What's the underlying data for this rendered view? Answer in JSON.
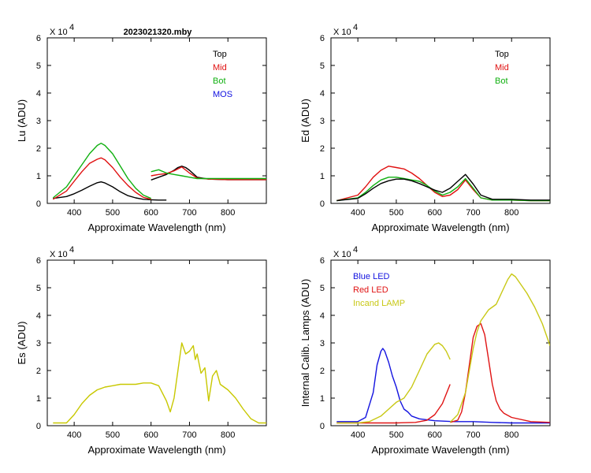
{
  "title": "2023021320.mby",
  "colors": {
    "top": "#000000",
    "mid": "#e01010",
    "bot": "#10b010",
    "mos": "#1010e0",
    "es": "#c8c800",
    "blue_led": "#1414e0",
    "red_led": "#e01414",
    "incand": "#c8c814"
  },
  "chart_data": [
    {
      "id": "lu",
      "type": "line",
      "title": "2023021320.mby",
      "xlabel": "Approximate Wavelength (nm)",
      "ylabel": "Lu (ADU)",
      "multiplier": "X 10",
      "multiplier_exp": "4",
      "xlim": [
        330,
        900
      ],
      "ylim": [
        0,
        6
      ],
      "xticks": [
        400,
        500,
        600,
        700,
        800
      ],
      "xtick_labels": [
        "400",
        "500",
        "600",
        "700",
        "800"
      ],
      "yticks": [
        0,
        1,
        2,
        3,
        4,
        5,
        6
      ],
      "ytick_labels": [
        "0",
        "1",
        "2",
        "3",
        "4",
        "5",
        "6"
      ],
      "legend_position": "top-right",
      "legend": [
        {
          "name": "Top",
          "color": "#000000"
        },
        {
          "name": "Mid",
          "color": "#e01010"
        },
        {
          "name": "Bot",
          "color": "#10b010"
        },
        {
          "name": "MOS",
          "color": "#1010e0"
        }
      ],
      "series": [
        {
          "name": "Top",
          "color": "#000000",
          "x": [
            345,
            380,
            400,
            420,
            440,
            460,
            470,
            480,
            500,
            520,
            540,
            560,
            580,
            600,
            620,
            640
          ],
          "y": [
            0.18,
            0.25,
            0.35,
            0.48,
            0.62,
            0.75,
            0.78,
            0.74,
            0.6,
            0.42,
            0.28,
            0.2,
            0.15,
            0.13,
            0.12,
            0.12
          ]
        },
        {
          "name": "Mid",
          "color": "#e01010",
          "x": [
            345,
            380,
            400,
            420,
            440,
            460,
            470,
            480,
            500,
            520,
            540,
            560,
            580,
            600
          ],
          "y": [
            0.15,
            0.45,
            0.8,
            1.15,
            1.45,
            1.6,
            1.65,
            1.58,
            1.3,
            0.95,
            0.65,
            0.4,
            0.22,
            0.15
          ]
        },
        {
          "name": "Bot",
          "color": "#10b010",
          "x": [
            345,
            380,
            400,
            420,
            440,
            460,
            470,
            480,
            500,
            520,
            540,
            560,
            580,
            600
          ],
          "y": [
            0.2,
            0.6,
            1.0,
            1.4,
            1.8,
            2.1,
            2.18,
            2.1,
            1.8,
            1.35,
            0.9,
            0.55,
            0.3,
            0.18
          ]
        },
        {
          "name": "Top",
          "color": "#000000",
          "x": [
            600,
            620,
            640,
            660,
            670,
            680,
            690,
            700,
            720,
            750,
            800,
            850,
            900
          ],
          "y": [
            0.85,
            0.95,
            1.05,
            1.2,
            1.3,
            1.35,
            1.3,
            1.2,
            0.95,
            0.88,
            0.86,
            0.86,
            0.86
          ]
        },
        {
          "name": "Mid",
          "color": "#e01010",
          "x": [
            600,
            620,
            640,
            660,
            680,
            700,
            720,
            750,
            800,
            850,
            900
          ],
          "y": [
            1.0,
            1.05,
            1.08,
            1.18,
            1.32,
            1.1,
            0.92,
            0.88,
            0.86,
            0.86,
            0.86
          ]
        },
        {
          "name": "Bot",
          "color": "#10b010",
          "x": [
            600,
            620,
            640,
            660,
            680,
            700,
            720,
            750,
            800,
            850,
            900
          ],
          "y": [
            1.15,
            1.22,
            1.1,
            1.05,
            1.0,
            0.95,
            0.9,
            0.9,
            0.9,
            0.9,
            0.9
          ]
        }
      ]
    },
    {
      "id": "ed",
      "type": "line",
      "xlabel": "Approximate Wavelength (nm)",
      "ylabel": "Ed  (ADU)",
      "multiplier": "X 10",
      "multiplier_exp": "4",
      "xlim": [
        330,
        900
      ],
      "ylim": [
        0,
        6
      ],
      "xticks": [
        400,
        500,
        600,
        700,
        800
      ],
      "xtick_labels": [
        "400",
        "500",
        "600",
        "700",
        "800"
      ],
      "yticks": [
        0,
        1,
        2,
        3,
        4,
        5,
        6
      ],
      "ytick_labels": [
        "0",
        "1",
        "2",
        "3",
        "4",
        "5",
        "6"
      ],
      "legend_position": "top-right",
      "legend": [
        {
          "name": "Top",
          "color": "#000000"
        },
        {
          "name": "Mid",
          "color": "#e01010"
        },
        {
          "name": "Bot",
          "color": "#10b010"
        }
      ],
      "series": [
        {
          "name": "Mid",
          "color": "#e01010",
          "x": [
            345,
            400,
            420,
            440,
            460,
            480,
            500,
            520,
            540,
            560,
            580,
            600,
            620,
            640,
            660,
            680,
            700,
            720,
            750,
            800,
            850,
            900
          ],
          "y": [
            0.1,
            0.3,
            0.6,
            0.95,
            1.2,
            1.35,
            1.3,
            1.25,
            1.1,
            0.9,
            0.65,
            0.4,
            0.25,
            0.3,
            0.5,
            0.85,
            0.5,
            0.2,
            0.12,
            0.12,
            0.1,
            0.1
          ]
        },
        {
          "name": "Bot",
          "color": "#10b010",
          "x": [
            345,
            400,
            420,
            440,
            460,
            480,
            500,
            520,
            540,
            560,
            580,
            600,
            620,
            640,
            660,
            680,
            700,
            720,
            750,
            800,
            850,
            900
          ],
          "y": [
            0.1,
            0.2,
            0.4,
            0.65,
            0.85,
            0.95,
            0.95,
            0.9,
            0.85,
            0.8,
            0.65,
            0.45,
            0.3,
            0.4,
            0.6,
            0.9,
            0.55,
            0.2,
            0.12,
            0.12,
            0.1,
            0.1
          ]
        },
        {
          "name": "Top",
          "color": "#000000",
          "x": [
            345,
            400,
            420,
            440,
            460,
            480,
            500,
            520,
            540,
            560,
            580,
            600,
            620,
            640,
            660,
            680,
            700,
            720,
            750,
            800,
            850,
            900
          ],
          "y": [
            0.1,
            0.18,
            0.35,
            0.55,
            0.72,
            0.82,
            0.88,
            0.88,
            0.82,
            0.72,
            0.6,
            0.48,
            0.4,
            0.55,
            0.8,
            1.05,
            0.7,
            0.3,
            0.15,
            0.15,
            0.12,
            0.12
          ]
        }
      ]
    },
    {
      "id": "es",
      "type": "line",
      "xlabel": "Approximate Wavelength (nm)",
      "ylabel": "Es  (ADU)",
      "multiplier": "X 10",
      "multiplier_exp": "4",
      "xlim": [
        330,
        900
      ],
      "ylim": [
        0,
        6
      ],
      "xticks": [
        400,
        500,
        600,
        700,
        800
      ],
      "xtick_labels": [
        "400",
        "500",
        "600",
        "700",
        "800"
      ],
      "yticks": [
        0,
        1,
        2,
        3,
        4,
        5,
        6
      ],
      "ytick_labels": [
        "0",
        "1",
        "2",
        "3",
        "4",
        "5",
        "6"
      ],
      "series": [
        {
          "name": "Es",
          "color": "#c8c800",
          "x": [
            345,
            380,
            400,
            420,
            440,
            460,
            480,
            500,
            520,
            540,
            560,
            580,
            600,
            620,
            640,
            650,
            660,
            670,
            680,
            690,
            700,
            710,
            715,
            720,
            730,
            740,
            750,
            760,
            770,
            780,
            800,
            820,
            840,
            860,
            880,
            900
          ],
          "y": [
            0.1,
            0.1,
            0.4,
            0.8,
            1.1,
            1.3,
            1.4,
            1.45,
            1.5,
            1.5,
            1.5,
            1.55,
            1.55,
            1.45,
            0.9,
            0.5,
            1.0,
            2.0,
            3.0,
            2.6,
            2.7,
            2.9,
            2.4,
            2.6,
            1.9,
            2.1,
            0.9,
            1.8,
            2.0,
            1.5,
            1.3,
            1.0,
            0.6,
            0.25,
            0.1,
            0.1
          ]
        }
      ]
    },
    {
      "id": "lamps",
      "type": "line",
      "xlabel": "Approximate Wavelength (nm)",
      "ylabel": "Internal Calib. Lamps  (ADU)",
      "multiplier": "X 10",
      "multiplier_exp": "4",
      "xlim": [
        330,
        900
      ],
      "ylim": [
        0,
        6
      ],
      "xticks": [
        400,
        500,
        600,
        700,
        800
      ],
      "xtick_labels": [
        "400",
        "500",
        "600",
        "700",
        "800"
      ],
      "yticks": [
        0,
        1,
        2,
        3,
        4,
        5,
        6
      ],
      "ytick_labels": [
        "0",
        "1",
        "2",
        "3",
        "4",
        "5",
        "6"
      ],
      "legend_position": "top-left",
      "legend": [
        {
          "name": "Blue LED",
          "color": "#1414e0"
        },
        {
          "name": "Red LED",
          "color": "#e01414"
        },
        {
          "name": "Incand LAMP",
          "color": "#c8c814"
        }
      ],
      "series": [
        {
          "name": "Blue LED",
          "color": "#1414e0",
          "x": [
            345,
            400,
            420,
            440,
            450,
            460,
            465,
            470,
            480,
            490,
            500,
            510,
            520,
            530,
            540,
            560,
            600,
            650,
            700,
            750,
            800,
            850,
            900
          ],
          "y": [
            0.15,
            0.15,
            0.3,
            1.2,
            2.2,
            2.7,
            2.8,
            2.7,
            2.3,
            1.8,
            1.4,
            0.9,
            0.6,
            0.5,
            0.35,
            0.25,
            0.18,
            0.15,
            0.15,
            0.12,
            0.1,
            0.1,
            0.1
          ]
        },
        {
          "name": "Red LED",
          "color": "#e01414",
          "x": [
            345,
            400,
            450,
            500,
            550,
            580,
            600,
            620,
            640
          ],
          "y": [
            0.1,
            0.1,
            0.1,
            0.1,
            0.12,
            0.2,
            0.4,
            0.8,
            1.5
          ]
        },
        {
          "name": "Red LED",
          "color": "#e01414",
          "x": [
            640,
            660,
            670,
            680,
            690,
            700,
            710,
            720,
            730,
            740,
            750,
            760,
            770,
            780,
            800,
            850,
            900
          ],
          "y": [
            0.12,
            0.2,
            0.5,
            1.2,
            2.2,
            3.2,
            3.6,
            3.7,
            3.3,
            2.4,
            1.5,
            0.9,
            0.6,
            0.45,
            0.3,
            0.15,
            0.12
          ]
        },
        {
          "name": "Incand LAMP",
          "color": "#c8c814",
          "x": [
            345,
            400,
            430,
            460,
            480,
            500,
            520,
            540,
            560,
            580,
            600,
            610,
            620,
            630,
            640
          ],
          "y": [
            0.1,
            0.1,
            0.15,
            0.35,
            0.6,
            0.85,
            1.0,
            1.4,
            2.0,
            2.6,
            2.95,
            3.0,
            2.9,
            2.7,
            2.4
          ]
        },
        {
          "name": "Incand LAMP",
          "color": "#c8c814",
          "x": [
            640,
            660,
            680,
            690,
            700,
            710,
            720,
            740,
            760,
            780,
            790,
            800,
            810,
            820,
            840,
            860,
            880,
            900
          ],
          "y": [
            0.12,
            0.4,
            1.2,
            2.0,
            2.8,
            3.4,
            3.8,
            4.2,
            4.4,
            5.0,
            5.3,
            5.5,
            5.4,
            5.2,
            4.8,
            4.3,
            3.7,
            2.9
          ]
        }
      ]
    }
  ]
}
